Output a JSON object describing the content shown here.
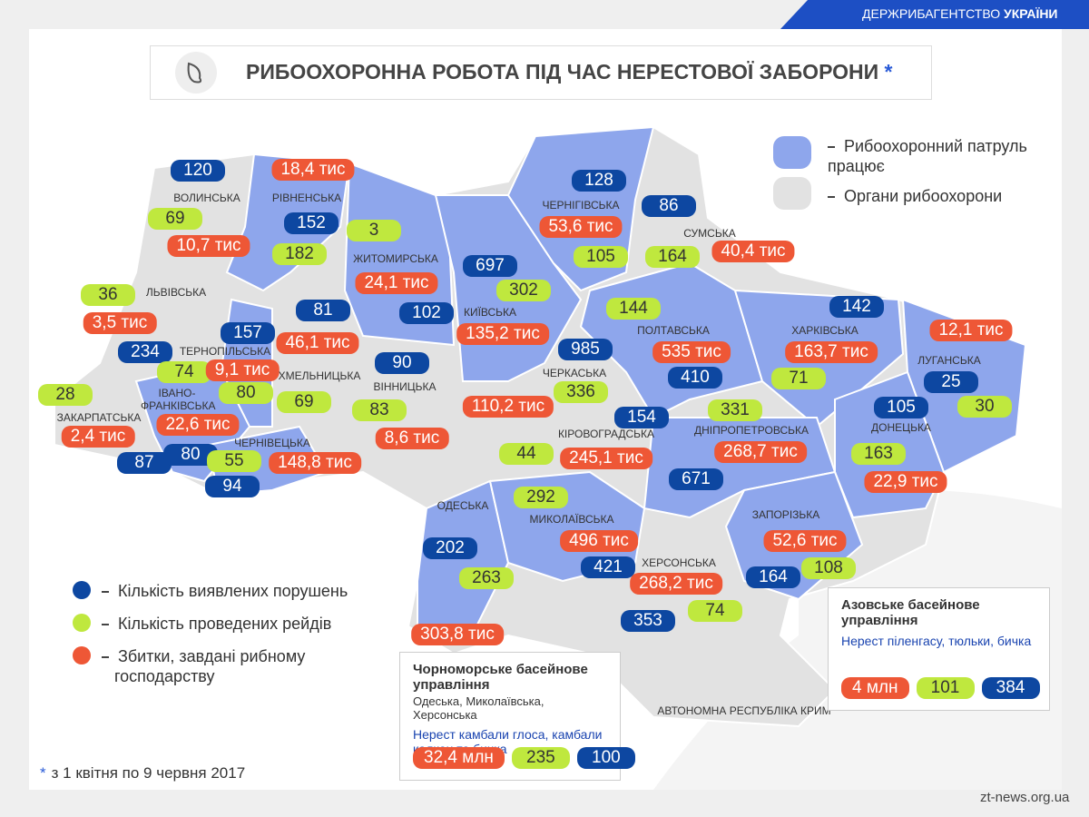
{
  "header": {
    "brand": "ДЕРЖРИБАГЕНТСТВО",
    "brand_bold": "УКРАЇНИ"
  },
  "title": {
    "text": "РИБООХОРОННА РОБОТА ПІД ЧАС НЕРЕСТОВОЇ ЗАБОРОНИ",
    "star": "*"
  },
  "map_legend": [
    "Рибоохоронний патруль працює",
    "Органи рибоохорони"
  ],
  "legend": [
    "Кількість виявлених порушень",
    "Кількість проведених рейдів",
    "Збитки, завдані рибному господарству"
  ],
  "regions": [
    {
      "name": "ВОЛИНСЬКА",
      "violations": 120,
      "raids": 69,
      "damage": "10,7 тис"
    },
    {
      "name": "РІВНЕНСЬКА",
      "violations": 152,
      "raids": 182,
      "damage": "18,4 тис"
    },
    {
      "name": "ЖИТОМИРСЬКА",
      "violations": 102,
      "raids": 3,
      "damage": "24,1 тис"
    },
    {
      "name": "КИЇВСЬКА",
      "violations": 697,
      "raids": 302,
      "damage": "135,2 тис"
    },
    {
      "name": "ЧЕРНІГІВСЬКА",
      "violations": 128,
      "raids": 105,
      "damage": "53,6 тис"
    },
    {
      "name": "СУМСЬКА",
      "violations": 86,
      "raids": 164,
      "damage": "40,4 тис"
    },
    {
      "name": "ЛЬВІВСЬКА",
      "violations": 234,
      "raids": 36,
      "damage": "3,5 тис"
    },
    {
      "name": "ТЕРНОПІЛЬСЬКА",
      "violations": 157,
      "raids": 74,
      "damage": "9,1 тис"
    },
    {
      "name": "ХМЕЛЬНИЦЬКА",
      "violations": 81,
      "raids": 69,
      "damage": "46,1 тис"
    },
    {
      "name": "ВІННИЦЬКА",
      "violations": 90,
      "raids": 83,
      "damage": "8,6 тис"
    },
    {
      "name": "ЧЕРКАСЬКА",
      "violations": 985,
      "raids": 336,
      "damage": "110,2 тис"
    },
    {
      "name": "ПОЛТАВСЬКА",
      "violations": 410,
      "raids": 144,
      "damage": "535 тис"
    },
    {
      "name": "ХАРКІВСЬКА",
      "violations": 142,
      "raids": 71,
      "damage": "163,7 тис"
    },
    {
      "name": "ЛУГАНСЬКА",
      "violations": 25,
      "raids": 30,
      "damage": "12,1 тис"
    },
    {
      "name": "ДОНЕЦЬКА",
      "violations": 105,
      "raids": 163,
      "damage": "22,9 тис"
    },
    {
      "name": "ДНІПРОПЕТРОВСЬКА",
      "violations": 671,
      "raids": 331,
      "damage": "268,7 тис"
    },
    {
      "name": "КІРОВОГРАДСЬКА",
      "violations": 154,
      "raids": 44,
      "damage": "245,1 тис"
    },
    {
      "name": "ЗАКАРПАТСЬКА",
      "violations": 87,
      "raids": 28,
      "damage": "2,4 тис"
    },
    {
      "name": "ІВАНО-ФРАНКІВСЬКА",
      "violations": 80,
      "raids": 80,
      "damage": "22,6 тис"
    },
    {
      "name": "ЧЕРНІВЕЦЬКА",
      "violations": 94,
      "raids": 55,
      "damage": "148,8 тис"
    },
    {
      "name": "ОДЕСЬКА",
      "violations": 202,
      "raids": 263,
      "damage": "303,8 тис"
    },
    {
      "name": "МИКОЛАЇВСЬКА",
      "violations": 421,
      "raids": 292,
      "damage": "496 тис"
    },
    {
      "name": "ХЕРСОНСЬКА",
      "violations": 353,
      "raids": 74,
      "damage": "268,2 тис"
    },
    {
      "name": "ЗАПОРІЗЬКА",
      "violations": 164,
      "raids": 108,
      "damage": "52,6 тис"
    }
  ],
  "crimea": "АВТОНОМНА РЕСПУБЛІКА КРИМ",
  "basins": [
    {
      "title": "Чорноморське басейнове управління",
      "subtitle": "Одеська, Миколаївська, Херсонська",
      "description": "Нерест камбали глоса, камбали калкан та бичка",
      "damage": "32,4 млн",
      "raids": 235,
      "violations": 100
    },
    {
      "title": "Азовське басейнове управління",
      "description": "Нерест піленгасу, тюльки, бичка",
      "damage": "4 млн",
      "raids": 101,
      "violations": 384
    }
  ],
  "footnote": {
    "star": "*",
    "text": "з 1 квітня по 9 червня 2017"
  },
  "watermark": "zt-news.org.ua"
}
